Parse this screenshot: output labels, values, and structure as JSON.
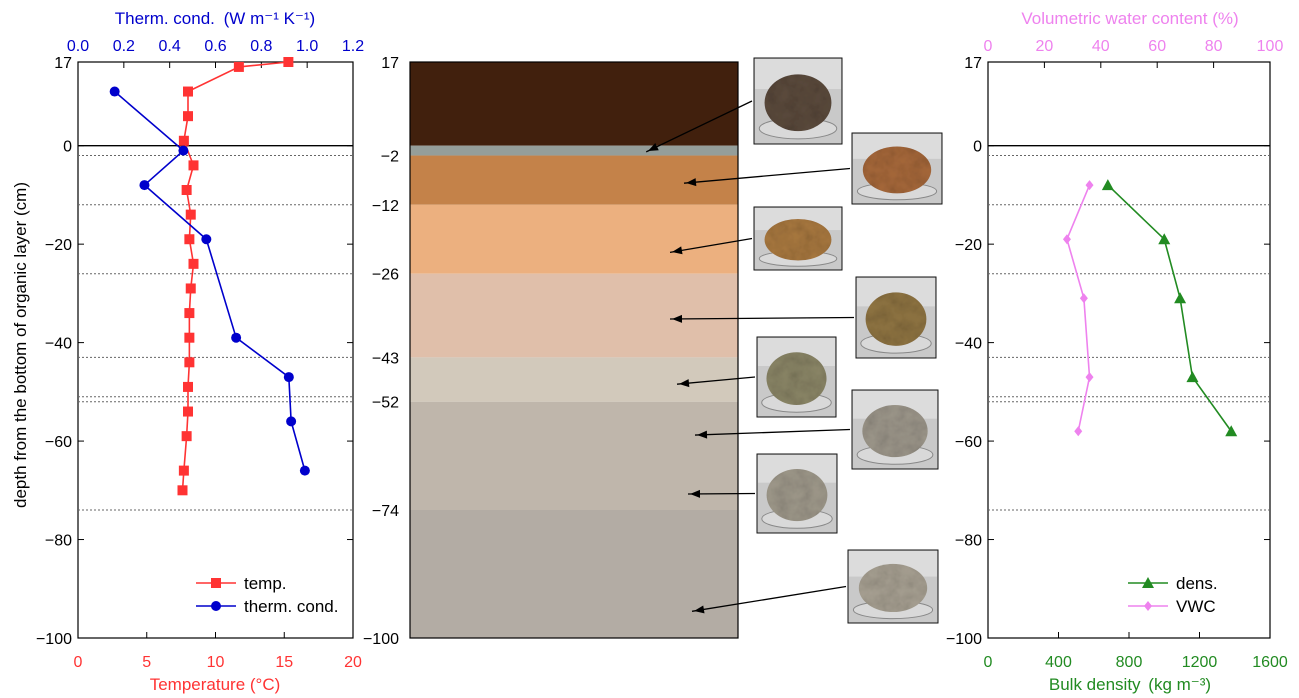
{
  "colors": {
    "temperature": "#ff3333",
    "thermal_conductivity": "#0000cc",
    "density": "#228b22",
    "vwc": "#ee82ee",
    "axis": "#000000",
    "dotted_lines": "#666666"
  },
  "chart_data": [
    {
      "type": "line",
      "panel": "left",
      "ylabel": "depth from the bottom of organic layer (cm)",
      "ylim": [
        -100,
        17
      ],
      "yticks": [
        17,
        0,
        -20,
        -40,
        -60,
        -80,
        -100
      ],
      "x_bottom": {
        "label": "Temperature (°C)",
        "lim": [
          0,
          20
        ],
        "ticks": [
          0,
          5,
          10,
          15,
          20
        ]
      },
      "x_top": {
        "label_prefix": "Therm. cond.",
        "unit": "(W m⁻¹ K⁻¹)",
        "lim": [
          0,
          1.2
        ],
        "ticks": [
          "0.0",
          "0.2",
          "0.4",
          "0.6",
          "0.8",
          "1.0",
          "1.2"
        ]
      },
      "series": [
        {
          "name": "temp.",
          "axis": "bottom",
          "marker": "square",
          "points": [
            {
              "x": 15.3,
              "y": 17
            },
            {
              "x": 11.7,
              "y": 16
            },
            {
              "x": 8.0,
              "y": 11
            },
            {
              "x": 8.0,
              "y": 6
            },
            {
              "x": 7.7,
              "y": 1
            },
            {
              "x": 8.4,
              "y": -4
            },
            {
              "x": 7.9,
              "y": -9
            },
            {
              "x": 8.2,
              "y": -14
            },
            {
              "x": 8.1,
              "y": -19
            },
            {
              "x": 8.4,
              "y": -24
            },
            {
              "x": 8.2,
              "y": -29
            },
            {
              "x": 8.1,
              "y": -34
            },
            {
              "x": 8.1,
              "y": -39
            },
            {
              "x": 8.1,
              "y": -44
            },
            {
              "x": 8.0,
              "y": -49
            },
            {
              "x": 8.0,
              "y": -54
            },
            {
              "x": 7.9,
              "y": -59
            },
            {
              "x": 7.7,
              "y": -66
            },
            {
              "x": 7.6,
              "y": -70
            }
          ]
        },
        {
          "name": "therm. cond.",
          "axis": "top",
          "marker": "circle",
          "points": [
            {
              "x": 0.16,
              "y": 11
            },
            {
              "x": 0.46,
              "y": -1
            },
            {
              "x": 0.29,
              "y": -8
            },
            {
              "x": 0.56,
              "y": -19
            },
            {
              "x": 0.69,
              "y": -39
            },
            {
              "x": 0.92,
              "y": -47
            },
            {
              "x": 0.93,
              "y": -56
            },
            {
              "x": 0.99,
              "y": -66
            }
          ]
        }
      ],
      "legend": {
        "placement": "bottom-right",
        "entries": [
          "temp.",
          "therm. cond."
        ]
      }
    },
    {
      "type": "table",
      "panel": "middle",
      "description_free": true,
      "ylim": [
        -100,
        17
      ],
      "boundary_labels": [
        "17",
        "-2",
        "-12",
        "-26",
        "-43",
        "-52",
        "-74",
        "-100"
      ],
      "layers": [
        {
          "top": 17,
          "bottom": 0,
          "color": "#41200d"
        },
        {
          "top": 0,
          "bottom": -2,
          "color": "#959e9a"
        },
        {
          "top": -2,
          "bottom": -12,
          "color": "#c48249"
        },
        {
          "top": -12,
          "bottom": -26,
          "color": "#ecb07f"
        },
        {
          "top": -26,
          "bottom": -43,
          "color": "#e0bfaa"
        },
        {
          "top": -43,
          "bottom": -52,
          "color": "#d2c9bb"
        },
        {
          "top": -52,
          "bottom": -74,
          "color": "#bfb6ab"
        },
        {
          "top": -74,
          "bottom": -100,
          "color": "#b3aca4"
        }
      ],
      "photos": [
        {
          "sample_depth": -1,
          "tone": "#5b4a3c"
        },
        {
          "sample_depth": -7,
          "tone": "#a6683a"
        },
        {
          "sample_depth": -21,
          "tone": "#a8783f"
        },
        {
          "sample_depth": -34,
          "tone": "#8f7442"
        },
        {
          "sample_depth": -47,
          "tone": "#8a8566"
        },
        {
          "sample_depth": -58,
          "tone": "#9c968a"
        },
        {
          "sample_depth": -69,
          "tone": "#9e988a"
        },
        {
          "sample_depth": -93,
          "tone": "#a7a092"
        }
      ]
    },
    {
      "type": "line",
      "panel": "right",
      "ylim": [
        -100,
        17
      ],
      "yticks": [
        17,
        0,
        -20,
        -40,
        -60,
        -80,
        -100
      ],
      "x_bottom": {
        "label_prefix": "Bulk density",
        "unit": "(kg m⁻³)",
        "lim": [
          0,
          1600
        ],
        "ticks": [
          0,
          400,
          800,
          1200,
          1600
        ]
      },
      "x_top": {
        "label": "Volumetric water content (%)",
        "lim": [
          0,
          100
        ],
        "ticks": [
          0,
          20,
          40,
          60,
          80,
          100
        ]
      },
      "series": [
        {
          "name": "dens.",
          "axis": "bottom",
          "marker": "triangle",
          "points": [
            {
              "x": 680,
              "y": -8
            },
            {
              "x": 1000,
              "y": -19
            },
            {
              "x": 1090,
              "y": -31
            },
            {
              "x": 1160,
              "y": -47
            },
            {
              "x": 1380,
              "y": -58
            }
          ]
        },
        {
          "name": "VWC",
          "axis": "top",
          "marker": "diamond",
          "points": [
            {
              "x": 36,
              "y": -8
            },
            {
              "x": 28,
              "y": -19
            },
            {
              "x": 34,
              "y": -31
            },
            {
              "x": 36,
              "y": -47
            },
            {
              "x": 32,
              "y": -58
            }
          ]
        }
      ],
      "legend": {
        "placement": "bottom-right",
        "entries": [
          "dens.",
          "VWC"
        ]
      }
    }
  ],
  "dotted_depths": [
    -2,
    -12,
    -26,
    -43,
    -51,
    -52,
    -74
  ]
}
